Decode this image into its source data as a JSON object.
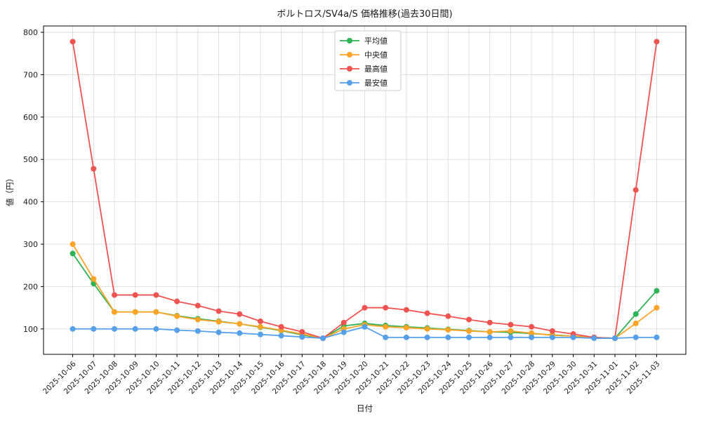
{
  "chart_data": {
    "type": "line",
    "title": "ボルトロス/SV4a/S 価格推移(過去30日間)",
    "xlabel": "日付",
    "ylabel": "値（円）",
    "ylim": [
      40,
      815
    ],
    "yticks": [
      100,
      200,
      300,
      400,
      500,
      600,
      700,
      800
    ],
    "grid": true,
    "legend_position": "upper center",
    "categories": [
      "2025-10-06",
      "2025-10-07",
      "2025-10-08",
      "2025-10-09",
      "2025-10-10",
      "2025-10-11",
      "2025-10-12",
      "2025-10-13",
      "2025-10-14",
      "2025-10-15",
      "2025-10-16",
      "2025-10-17",
      "2025-10-18",
      "2025-10-19",
      "2025-10-20",
      "2025-10-21",
      "2025-10-22",
      "2025-10-23",
      "2025-10-24",
      "2025-10-25",
      "2025-10-26",
      "2025-10-27",
      "2025-10-28",
      "2025-10-29",
      "2025-10-30",
      "2025-10-31",
      "2025-11-01",
      "2025-11-02",
      "2025-11-03"
    ],
    "series": [
      {
        "name": "平均値",
        "key": "average",
        "color": "#2eb356",
        "values": [
          278,
          207,
          140,
          140,
          140,
          131,
          124,
          118,
          112,
          104,
          96,
          86,
          78,
          107,
          113,
          108,
          105,
          102,
          99,
          96,
          93,
          92,
          89,
          86,
          83,
          80,
          78,
          135,
          190
        ]
      },
      {
        "name": "中央値",
        "key": "median",
        "color": "#ffa426",
        "values": [
          300,
          218,
          140,
          140,
          140,
          130,
          122,
          117,
          112,
          105,
          97,
          88,
          78,
          100,
          110,
          105,
          103,
          100,
          98,
          95,
          93,
          95,
          90,
          85,
          83,
          80,
          78,
          113,
          150
        ]
      },
      {
        "name": "最高値",
        "key": "max",
        "color": "#ef5350",
        "values": [
          778,
          478,
          180,
          180,
          180,
          165,
          155,
          142,
          135,
          118,
          105,
          93,
          78,
          115,
          150,
          150,
          145,
          137,
          130,
          122,
          115,
          110,
          105,
          95,
          88,
          80,
          78,
          428,
          778
        ]
      },
      {
        "name": "最安値",
        "key": "min",
        "color": "#55a0e8",
        "values": [
          100,
          100,
          100,
          100,
          100,
          97,
          95,
          92,
          90,
          87,
          84,
          81,
          78,
          92,
          105,
          80,
          80,
          80,
          80,
          80,
          80,
          80,
          80,
          80,
          80,
          78,
          78,
          80,
          80
        ]
      }
    ],
    "style": {
      "grid_color": "#d9d9d9",
      "spine_color": "#000000",
      "legend_border": "#cccccc",
      "background": "#ffffff"
    }
  }
}
